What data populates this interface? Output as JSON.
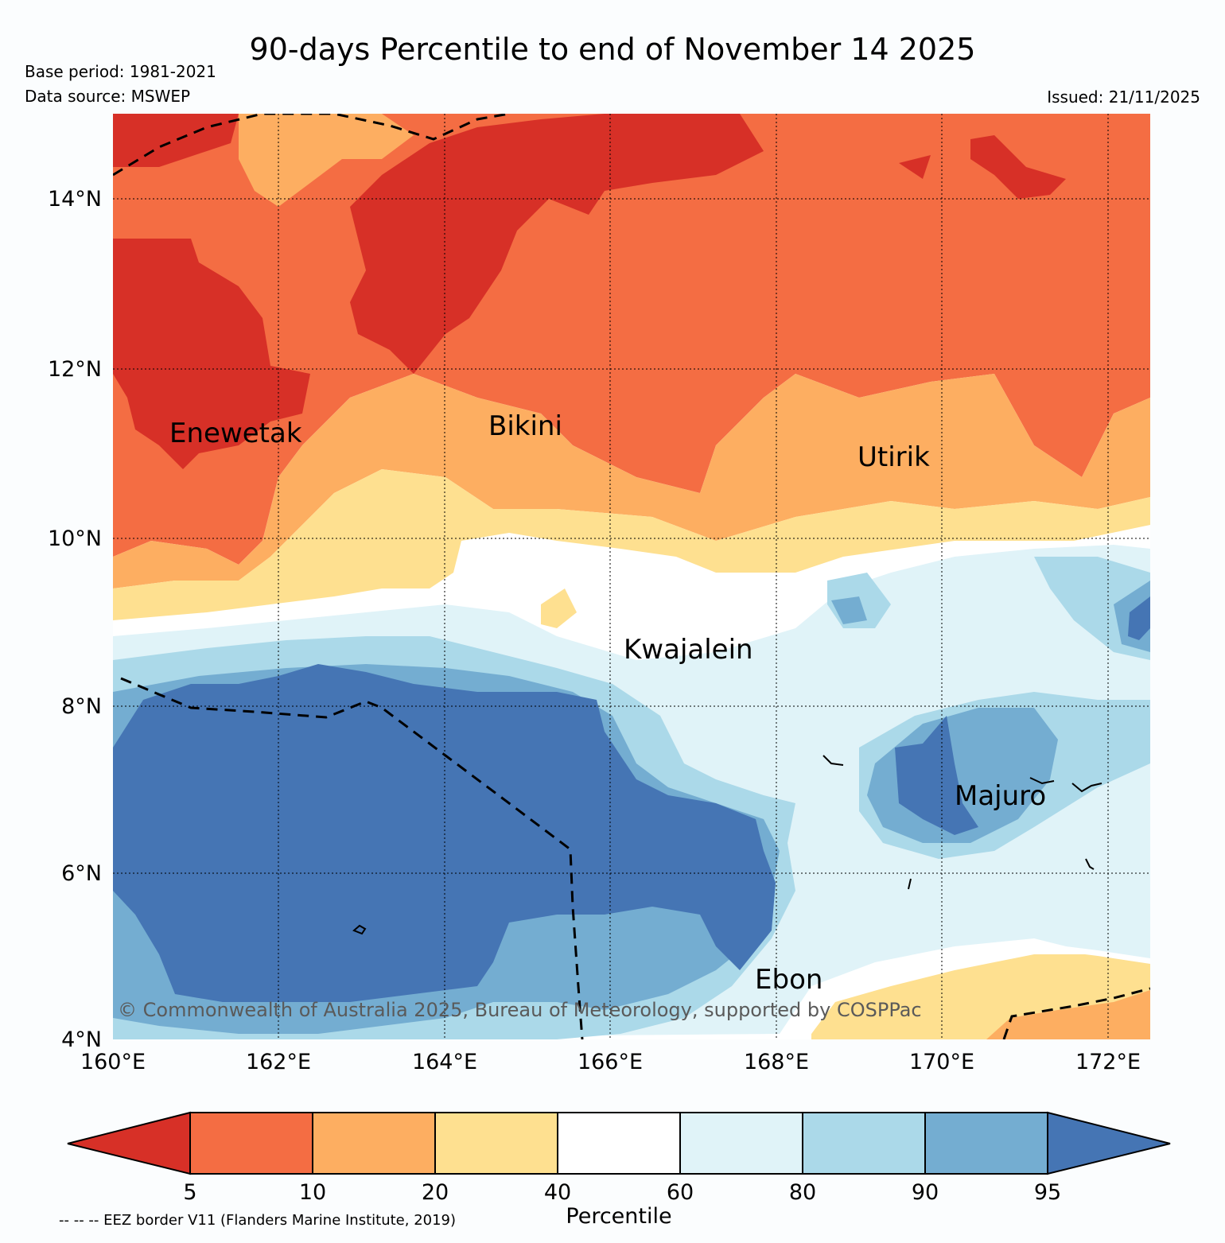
{
  "title": "90-days Percentile to end of November 14 2025",
  "base_period": "Base period: 1981-2021",
  "data_source": "Data source: MSWEP",
  "issued": "Issued: 21/11/2025",
  "copyright": "© Commonwealth of Australia 2025, Bureau of Meteorology, supported by COSPPac",
  "eez_note": "-- -- -- EEZ border V11 (Flanders Marine Institute, 2019)",
  "axes": {
    "lat_ticks": [
      "14°N",
      "12°N",
      "10°N",
      "8°N",
      "6°N",
      "4°N"
    ],
    "lon_ticks": [
      "160°E",
      "162°E",
      "164°E",
      "166°E",
      "168°E",
      "170°E",
      "172°E"
    ]
  },
  "places": {
    "enewetak": "Enewetak",
    "bikini": "Bikini",
    "utirik": "Utirik",
    "kwajalein": "Kwajalein",
    "majuro": "Majuro",
    "ebon": "Ebon"
  },
  "colorbar": {
    "label": "Percentile",
    "ticks": [
      "5",
      "10",
      "20",
      "40",
      "60",
      "80",
      "90",
      "95"
    ],
    "colors": {
      "below_5": "#d73027",
      "p5_10": "#f46d43",
      "p10_20": "#fdae61",
      "p20_40": "#fee090",
      "p40_60": "#ffffff",
      "p60_80": "#e0f3f8",
      "p80_90": "#abd9e9",
      "p90_95": "#74add1",
      "above_95": "#4575b4"
    }
  }
}
